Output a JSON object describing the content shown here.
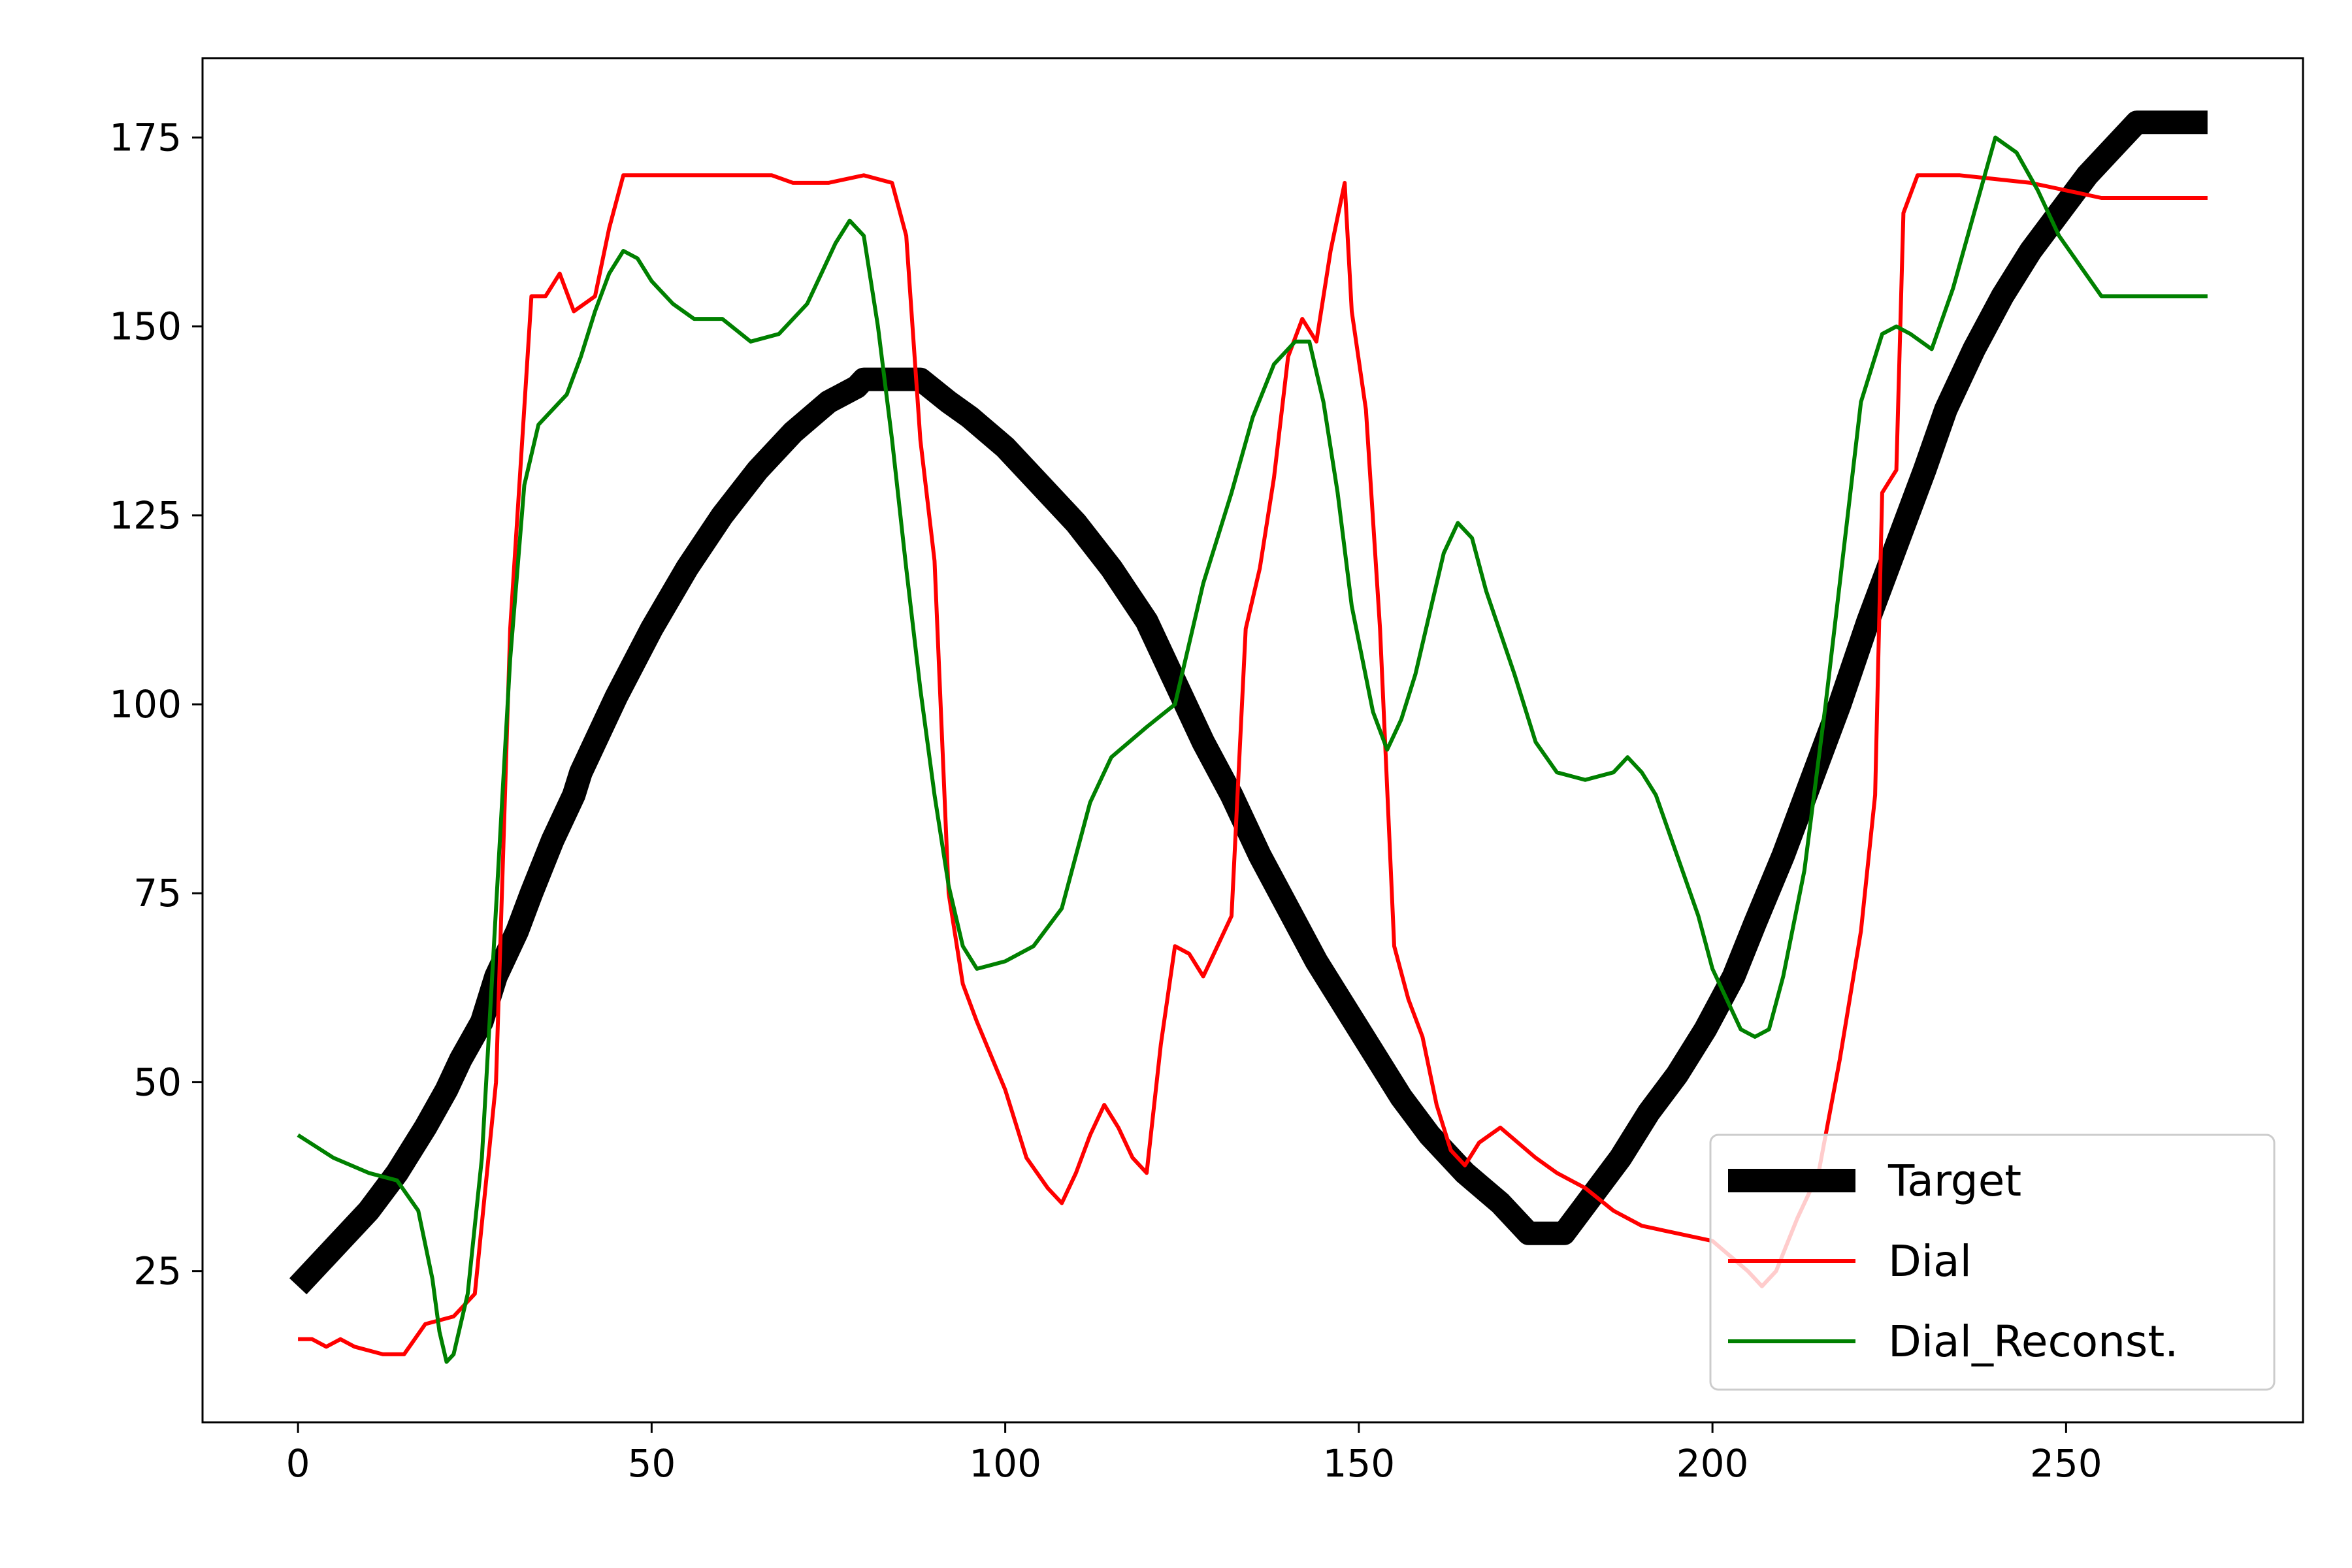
{
  "chart_data": {
    "type": "line",
    "title": "",
    "xlabel": "",
    "ylabel": "",
    "xlim": [
      -13.5,
      283.5
    ],
    "ylim": [
      5,
      185.5
    ],
    "x_ticks": [
      0,
      50,
      100,
      150,
      200,
      250
    ],
    "y_ticks": [
      25,
      50,
      75,
      100,
      125,
      150,
      175
    ],
    "grid": false,
    "legend_position": "lower-right",
    "series": [
      {
        "name": "Target",
        "color": "#000000",
        "points": [
          [
            0,
            23
          ],
          [
            3,
            26
          ],
          [
            7,
            30
          ],
          [
            10,
            33
          ],
          [
            14,
            38
          ],
          [
            18,
            44
          ],
          [
            21,
            49
          ],
          [
            23,
            53
          ],
          [
            26,
            58
          ],
          [
            28,
            64
          ],
          [
            31,
            70
          ],
          [
            33,
            75
          ],
          [
            36,
            82
          ],
          [
            39,
            88
          ],
          [
            40,
            91
          ],
          [
            45,
            101
          ],
          [
            50,
            110
          ],
          [
            55,
            118
          ],
          [
            60,
            125
          ],
          [
            65,
            131
          ],
          [
            70,
            136
          ],
          [
            75,
            140
          ],
          [
            79,
            142
          ],
          [
            80,
            143
          ],
          [
            88,
            143
          ],
          [
            92,
            140
          ],
          [
            95,
            138
          ],
          [
            100,
            134
          ],
          [
            105,
            129
          ],
          [
            110,
            124
          ],
          [
            115,
            118
          ],
          [
            120,
            111
          ],
          [
            124,
            103
          ],
          [
            128,
            95
          ],
          [
            132,
            88
          ],
          [
            136,
            80
          ],
          [
            140,
            73
          ],
          [
            144,
            66
          ],
          [
            148,
            60
          ],
          [
            152,
            54
          ],
          [
            156,
            48
          ],
          [
            160,
            43
          ],
          [
            165,
            38
          ],
          [
            170,
            34
          ],
          [
            174,
            30
          ],
          [
            179,
            30
          ],
          [
            183,
            35
          ],
          [
            187,
            40
          ],
          [
            191,
            46
          ],
          [
            195,
            51
          ],
          [
            199,
            57
          ],
          [
            203,
            64
          ],
          [
            206,
            71
          ],
          [
            210,
            80
          ],
          [
            214,
            90
          ],
          [
            218,
            100
          ],
          [
            222,
            111
          ],
          [
            226,
            121
          ],
          [
            230,
            131
          ],
          [
            233,
            139
          ],
          [
            237,
            147
          ],
          [
            241,
            154
          ],
          [
            245,
            160
          ],
          [
            249,
            165
          ],
          [
            253,
            170
          ],
          [
            257,
            174
          ],
          [
            260,
            177
          ],
          [
            270,
            177
          ]
        ]
      },
      {
        "name": "Dial",
        "color": "#ff0000",
        "points": [
          [
            0,
            16
          ],
          [
            2,
            16
          ],
          [
            4,
            15
          ],
          [
            6,
            16
          ],
          [
            8,
            15
          ],
          [
            12,
            14
          ],
          [
            15,
            14
          ],
          [
            18,
            18
          ],
          [
            22,
            19
          ],
          [
            25,
            22
          ],
          [
            28,
            50
          ],
          [
            30,
            110
          ],
          [
            33,
            154
          ],
          [
            35,
            154
          ],
          [
            37,
            157
          ],
          [
            39,
            152
          ],
          [
            42,
            154
          ],
          [
            44,
            163
          ],
          [
            46,
            170
          ],
          [
            55,
            170
          ],
          [
            60,
            170
          ],
          [
            67,
            170
          ],
          [
            70,
            169
          ],
          [
            75,
            169
          ],
          [
            80,
            170
          ],
          [
            84,
            169
          ],
          [
            86,
            162
          ],
          [
            88,
            135
          ],
          [
            90,
            119
          ],
          [
            92,
            75
          ],
          [
            94,
            63
          ],
          [
            96,
            58
          ],
          [
            100,
            49
          ],
          [
            103,
            40
          ],
          [
            106,
            36
          ],
          [
            108,
            34
          ],
          [
            110,
            38
          ],
          [
            112,
            43
          ],
          [
            114,
            47
          ],
          [
            116,
            44
          ],
          [
            118,
            40
          ],
          [
            120,
            38
          ],
          [
            122,
            55
          ],
          [
            124,
            68
          ],
          [
            126,
            67
          ],
          [
            128,
            64
          ],
          [
            130,
            68
          ],
          [
            132,
            72
          ],
          [
            134,
            110
          ],
          [
            136,
            118
          ],
          [
            138,
            130
          ],
          [
            140,
            146
          ],
          [
            142,
            151
          ],
          [
            144,
            148
          ],
          [
            146,
            160
          ],
          [
            148,
            169
          ],
          [
            149,
            152
          ],
          [
            151,
            139
          ],
          [
            153,
            110
          ],
          [
            155,
            68
          ],
          [
            157,
            61
          ],
          [
            159,
            56
          ],
          [
            161,
            47
          ],
          [
            163,
            41
          ],
          [
            165,
            39
          ],
          [
            167,
            42
          ],
          [
            170,
            44
          ],
          [
            175,
            40
          ],
          [
            178,
            38
          ],
          [
            182,
            36
          ],
          [
            186,
            33
          ],
          [
            190,
            31
          ],
          [
            195,
            30
          ],
          [
            200,
            29
          ],
          [
            205,
            25
          ],
          [
            207,
            23
          ],
          [
            209,
            25
          ],
          [
            212,
            32
          ],
          [
            215,
            38
          ],
          [
            218,
            53
          ],
          [
            221,
            70
          ],
          [
            223,
            88
          ],
          [
            224,
            128
          ],
          [
            226,
            131
          ],
          [
            227,
            165
          ],
          [
            229,
            170
          ],
          [
            235,
            170
          ],
          [
            245,
            169
          ],
          [
            250,
            168
          ],
          [
            255,
            167
          ],
          [
            262,
            167
          ],
          [
            270,
            167
          ]
        ]
      },
      {
        "name": "Dial_Reconst.",
        "color": "#008000",
        "points": [
          [
            0,
            43
          ],
          [
            5,
            40
          ],
          [
            10,
            38
          ],
          [
            14,
            37
          ],
          [
            17,
            33
          ],
          [
            19,
            24
          ],
          [
            20,
            17
          ],
          [
            21,
            13
          ],
          [
            22,
            14
          ],
          [
            24,
            22
          ],
          [
            26,
            40
          ],
          [
            28,
            73
          ],
          [
            30,
            106
          ],
          [
            32,
            129
          ],
          [
            34,
            137
          ],
          [
            36,
            139
          ],
          [
            38,
            141
          ],
          [
            40,
            146
          ],
          [
            42,
            152
          ],
          [
            44,
            157
          ],
          [
            46,
            160
          ],
          [
            48,
            159
          ],
          [
            50,
            156
          ],
          [
            53,
            153
          ],
          [
            56,
            151
          ],
          [
            60,
            151
          ],
          [
            64,
            148
          ],
          [
            68,
            149
          ],
          [
            72,
            153
          ],
          [
            74,
            157
          ],
          [
            76,
            161
          ],
          [
            78,
            164
          ],
          [
            80,
            162
          ],
          [
            82,
            150
          ],
          [
            84,
            135
          ],
          [
            86,
            118
          ],
          [
            88,
            102
          ],
          [
            90,
            88
          ],
          [
            92,
            76
          ],
          [
            94,
            68
          ],
          [
            96,
            65
          ],
          [
            100,
            66
          ],
          [
            104,
            68
          ],
          [
            108,
            73
          ],
          [
            112,
            87
          ],
          [
            115,
            93
          ],
          [
            120,
            97
          ],
          [
            124,
            100
          ],
          [
            126,
            108
          ],
          [
            128,
            116
          ],
          [
            130,
            122
          ],
          [
            132,
            128
          ],
          [
            135,
            138
          ],
          [
            138,
            145
          ],
          [
            141,
            148
          ],
          [
            143,
            148
          ],
          [
            145,
            140
          ],
          [
            147,
            128
          ],
          [
            149,
            113
          ],
          [
            152,
            99
          ],
          [
            154,
            94
          ],
          [
            156,
            98
          ],
          [
            158,
            104
          ],
          [
            160,
            112
          ],
          [
            162,
            120
          ],
          [
            164,
            124
          ],
          [
            166,
            122
          ],
          [
            168,
            115
          ],
          [
            172,
            104
          ],
          [
            175,
            95
          ],
          [
            178,
            91
          ],
          [
            182,
            90
          ],
          [
            186,
            91
          ],
          [
            188,
            93
          ],
          [
            190,
            91
          ],
          [
            192,
            88
          ],
          [
            195,
            80
          ],
          [
            198,
            72
          ],
          [
            200,
            65
          ],
          [
            202,
            61
          ],
          [
            204,
            57
          ],
          [
            206,
            56
          ],
          [
            208,
            57
          ],
          [
            210,
            64
          ],
          [
            213,
            78
          ],
          [
            216,
            100
          ],
          [
            219,
            124
          ],
          [
            221,
            140
          ],
          [
            224,
            149
          ],
          [
            226,
            150
          ],
          [
            228,
            149
          ],
          [
            231,
            147
          ],
          [
            234,
            155
          ],
          [
            237,
            165
          ],
          [
            240,
            175
          ],
          [
            243,
            173
          ],
          [
            246,
            168
          ],
          [
            249,
            162
          ],
          [
            252,
            158
          ],
          [
            255,
            154
          ],
          [
            258,
            154
          ],
          [
            270,
            154
          ]
        ]
      }
    ]
  }
}
